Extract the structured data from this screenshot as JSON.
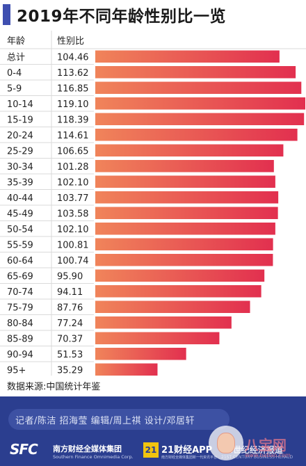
{
  "title": "2019年不同年龄性别比一览",
  "source": "数据来源:中国统计年鉴",
  "footer": {
    "credits": "记者/陈洁  招海莹  编辑/周上祺  设计/邓居轩",
    "logo_sfc": "SFC",
    "logo_sfc_cn": "南方财经全媒体集团",
    "logo_sfc_en": "Southern Finance Omnimedia Corp.",
    "logo_21_mark": "21",
    "logo_21_text": "21财经APP",
    "logo_21_sub": "南方财经全媒体集团新一代资讯平台",
    "logo_cent": "21世纪经济报道",
    "logo_cent_en": "21ST CENTURY BUSINESS HERALD",
    "watermark_text": "八宝网",
    "watermark_url": "www.babao.com"
  },
  "colors": {
    "accent": "#3f4fb0",
    "bar_light": "#f0845a",
    "bar_dark": "#e2304f",
    "row_line": "#dadada",
    "footer_bg": "#2b3e8f"
  },
  "chart_data": {
    "type": "bar",
    "orientation": "horizontal",
    "columns": [
      "年龄",
      "性别比"
    ],
    "categories": [
      "总计",
      "0-4",
      "5-9",
      "10-14",
      "15-19",
      "20-24",
      "25-29",
      "30-34",
      "35-39",
      "40-44",
      "45-49",
      "50-54",
      "55-59",
      "60-64",
      "65-69",
      "70-74",
      "75-79",
      "80-84",
      "85-89",
      "90-94",
      "95+"
    ],
    "values": [
      104.46,
      113.62,
      116.85,
      119.1,
      118.39,
      114.61,
      106.65,
      101.28,
      102.1,
      103.77,
      103.58,
      102.1,
      100.81,
      100.74,
      95.9,
      94.11,
      87.76,
      77.24,
      70.37,
      51.53,
      35.29
    ],
    "value_labels": [
      "104.46",
      "113.62",
      "116.85",
      "119.10",
      "118.39",
      "114.61",
      "106.65",
      "101.28",
      "102.10",
      "103.77",
      "103.58",
      "102.10",
      "100.81",
      "100.74",
      "95.90",
      "94.11",
      "87.76",
      "77.24",
      "70.37",
      "51.53",
      "35.29"
    ],
    "xlim": [
      0,
      119.1
    ],
    "grid": false,
    "legend": "none"
  }
}
